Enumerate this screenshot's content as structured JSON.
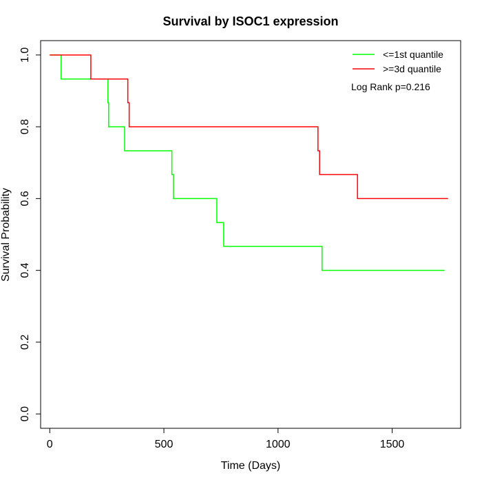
{
  "chart_data": {
    "type": "line",
    "step": true,
    "title": "Survival by ISOC1 expression",
    "xlabel": "Time (Days)",
    "ylabel": "Survival Probability",
    "xlim": [
      -40,
      1800
    ],
    "ylim": [
      -0.04,
      1.04
    ],
    "xticks": [
      0,
      500,
      1000,
      1500
    ],
    "yticks": [
      0.0,
      0.2,
      0.4,
      0.6,
      0.8,
      1.0
    ],
    "xtick_labels": [
      "0",
      "500",
      "1000",
      "1500"
    ],
    "ytick_labels": [
      "0.0",
      "0.2",
      "0.4",
      "0.6",
      "0.8",
      "1.0"
    ],
    "grid": false,
    "legend_position": "top-right",
    "annotation": "Log Rank p=0.216",
    "series": [
      {
        "name": "<=1st quantile",
        "color": "#00ff00",
        "x": [
          0,
          50,
          255,
          258,
          328,
          535,
          542,
          732,
          762,
          1193,
          1730
        ],
        "y": [
          1.0,
          0.933,
          0.867,
          0.8,
          0.733,
          0.667,
          0.6,
          0.533,
          0.467,
          0.4,
          0.4
        ]
      },
      {
        "name": ">=3d quantile",
        "color": "#ff0000",
        "x": [
          0,
          180,
          342,
          348,
          1175,
          1182,
          1348,
          1745
        ],
        "y": [
          1.0,
          0.933,
          0.867,
          0.8,
          0.733,
          0.667,
          0.6,
          0.6
        ]
      }
    ]
  }
}
